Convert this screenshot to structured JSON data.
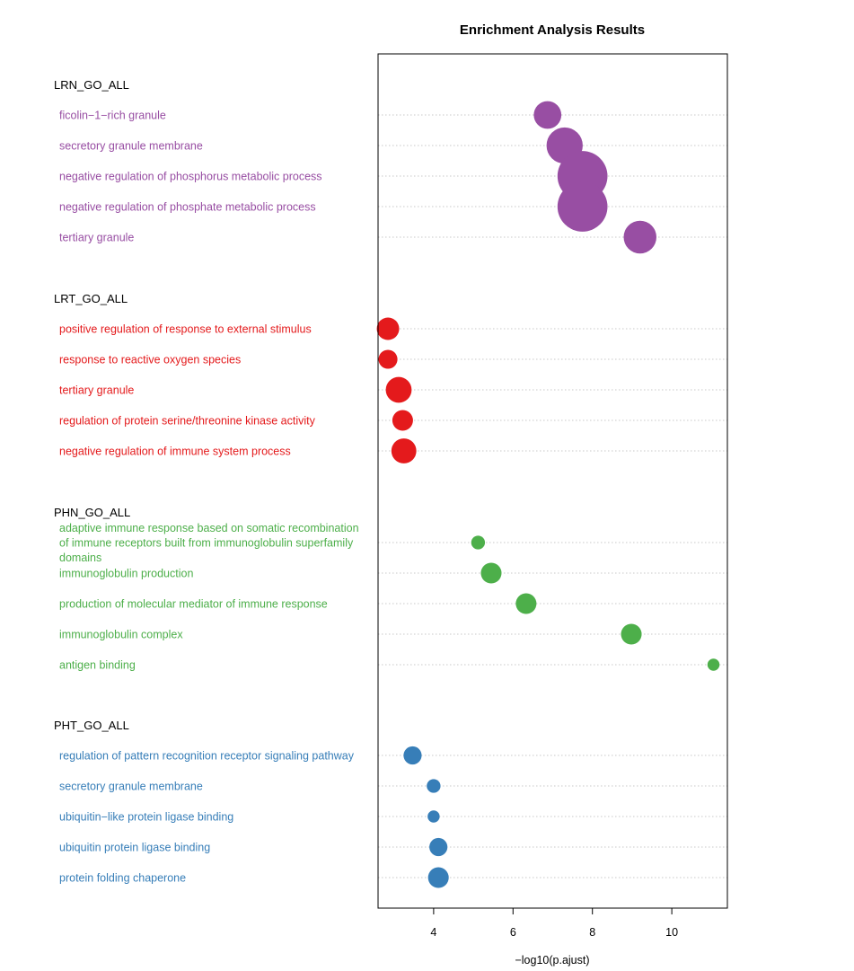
{
  "chart_data": {
    "type": "scatter",
    "title": "Enrichment Analysis Results",
    "xlabel": "−log10(p.ajust)",
    "xlim": [
      2.6,
      11.4
    ],
    "xticks": [
      4,
      6,
      8,
      10
    ],
    "grid": "horizontal dotted",
    "groups": [
      {
        "name": "LRN_GO_ALL",
        "color": "#984ea3",
        "terms": [
          {
            "label": [
              "ficolin−1−rich granule"
            ],
            "x": 6.87,
            "size": 3.2
          },
          {
            "label": [
              "secretory granule membrane"
            ],
            "x": 7.3,
            "size": 4.2
          },
          {
            "label": [
              "negative regulation of phosphorus metabolic process"
            ],
            "x": 7.75,
            "size": 5.8
          },
          {
            "label": [
              "negative regulation of phosphate metabolic process"
            ],
            "x": 7.75,
            "size": 5.8
          },
          {
            "label": [
              "tertiary granule"
            ],
            "x": 9.2,
            "size": 3.8
          }
        ]
      },
      {
        "name": "LRT_GO_ALL",
        "color": "#e41a1c",
        "terms": [
          {
            "label": [
              "positive regulation of response to external stimulus"
            ],
            "x": 2.85,
            "size": 2.6
          },
          {
            "label": [
              "response to reactive oxygen species"
            ],
            "x": 2.85,
            "size": 2.2
          },
          {
            "label": [
              "tertiary granule"
            ],
            "x": 3.12,
            "size": 3.0
          },
          {
            "label": [
              "regulation of protein serine/threonine kinase activity"
            ],
            "x": 3.22,
            "size": 2.4
          },
          {
            "label": [
              "negative regulation of immune system process"
            ],
            "x": 3.25,
            "size": 2.9
          }
        ]
      },
      {
        "name": "PHN_GO_ALL",
        "color": "#4daf4a",
        "terms": [
          {
            "label": [
              "adaptive immune response based on somatic recombination",
              "of immune receptors built from immunoglobulin superfamily",
              "domains"
            ],
            "x": 5.12,
            "size": 1.6
          },
          {
            "label": [
              "immunoglobulin production"
            ],
            "x": 5.45,
            "size": 2.4
          },
          {
            "label": [
              "production of molecular mediator of immune response"
            ],
            "x": 6.33,
            "size": 2.4
          },
          {
            "label": [
              "immunoglobulin complex"
            ],
            "x": 8.98,
            "size": 2.4
          },
          {
            "label": [
              "antigen binding"
            ],
            "x": 11.05,
            "size": 1.4
          }
        ]
      },
      {
        "name": "PHT_GO_ALL",
        "color": "#377eb8",
        "terms": [
          {
            "label": [
              "regulation of pattern recognition receptor signaling pathway"
            ],
            "x": 3.47,
            "size": 2.1
          },
          {
            "label": [
              "secretory granule membrane"
            ],
            "x": 4.0,
            "size": 1.6
          },
          {
            "label": [
              "ubiquitin−like protein ligase binding"
            ],
            "x": 4.0,
            "size": 1.4
          },
          {
            "label": [
              "ubiquitin protein ligase binding"
            ],
            "x": 4.12,
            "size": 2.1
          },
          {
            "label": [
              "protein folding chaperone"
            ],
            "x": 4.12,
            "size": 2.4
          }
        ]
      }
    ]
  }
}
